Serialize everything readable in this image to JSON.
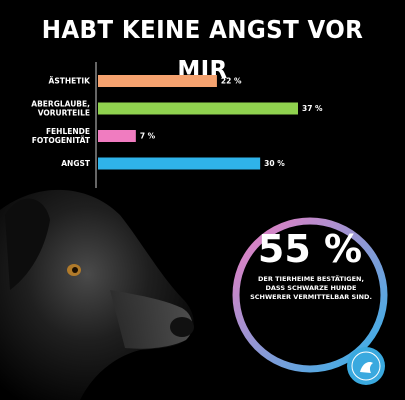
{
  "title": "HABT KEINE ANGST VOR MIR",
  "chart_data": {
    "type": "bar",
    "orientation": "horizontal",
    "categories": [
      [
        "ÄSTHETIK"
      ],
      [
        "ABERGLAUBE,",
        "VORURTEILE"
      ],
      [
        "FEHLENDE",
        "FOTOGENITÄT"
      ],
      [
        "ANGST"
      ]
    ],
    "values": [
      22,
      37,
      7,
      30
    ],
    "value_labels": [
      "22 %",
      "37 %",
      "7 %",
      "30 %"
    ],
    "colors": [
      "#f5a26f",
      "#8fd24e",
      "#f07cc0",
      "#2fb3ea"
    ],
    "xlim": [
      0,
      37
    ],
    "grid": false
  },
  "stat": {
    "value": "55 %",
    "text": "DER TIERHEIME BESTÄTIGEN, DASS SCHWARZE HUNDE SCHWERER VERMITTELBAR SIND.",
    "ring_colors": [
      "#f07cc0",
      "#2fb3ea"
    ]
  }
}
